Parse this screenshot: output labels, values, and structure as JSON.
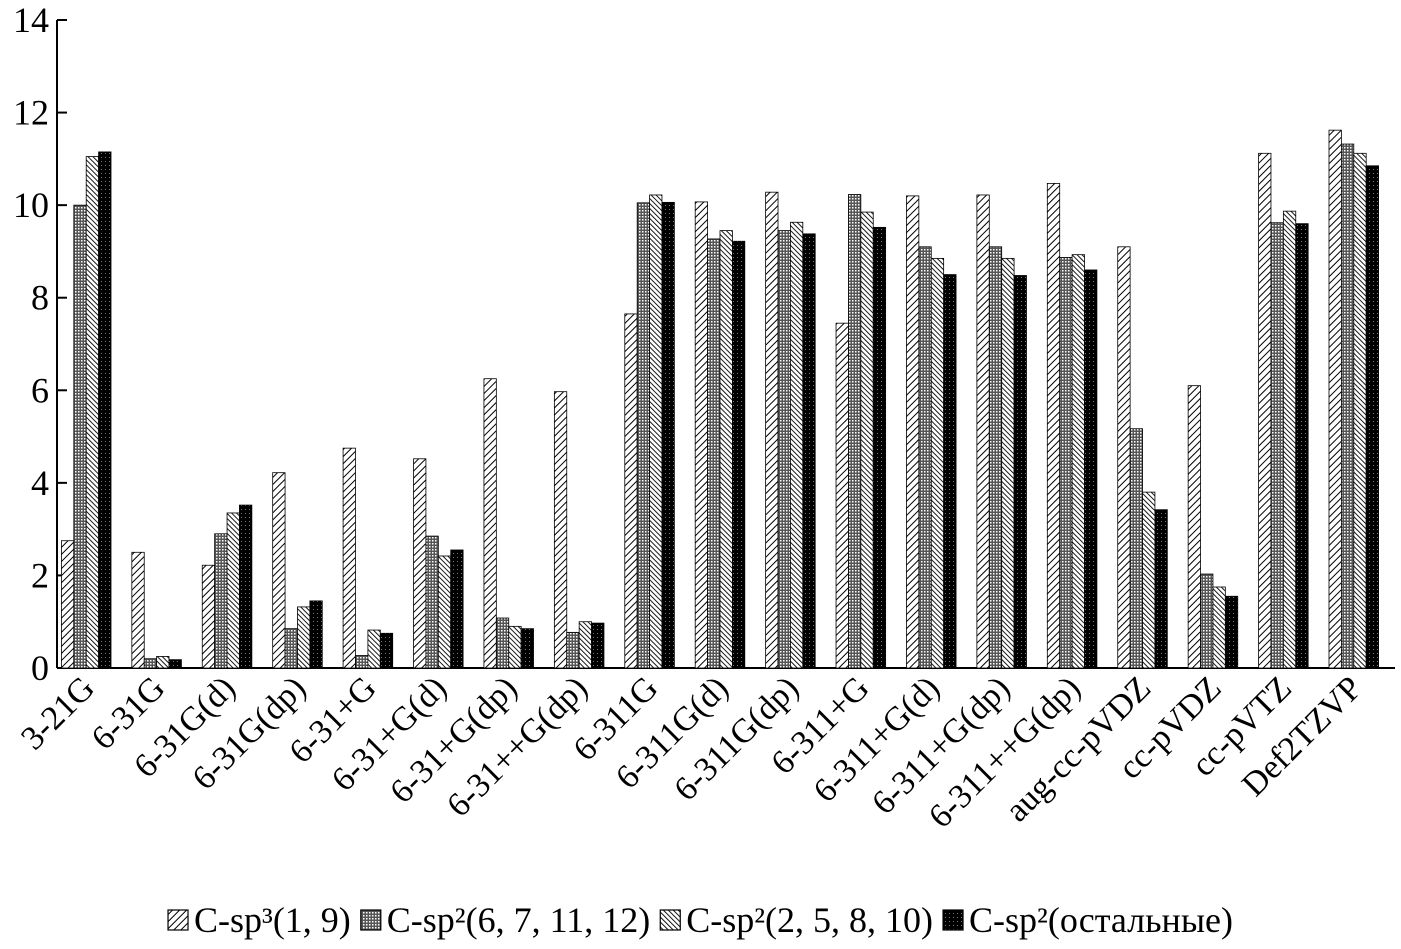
{
  "chart_data": {
    "type": "bar",
    "categories": [
      "3-21G",
      "6-31G",
      "6-31G(d)",
      "6-31G(dp)",
      "6-31+G",
      "6-31+G(d)",
      "6-31+G(dp)",
      "6-31++G(dp)",
      "6-311G",
      "6-311G(d)",
      "6-311G(dp)",
      "6-311+G",
      "6-311+G(d)",
      "6-311+G(dp)",
      "6-311++G(dp)",
      "aug-cc-pVDZ",
      "cc-pVDZ",
      "cc-pVTZ",
      "Def2TZVP"
    ],
    "series": [
      {
        "name": "C-sp³(1, 9)",
        "color": "#000000",
        "pattern": "diagonal",
        "values": [
          2.75,
          2.5,
          2.22,
          4.22,
          4.75,
          4.52,
          6.25,
          5.97,
          7.65,
          10.07,
          10.28,
          7.45,
          10.2,
          10.22,
          10.47,
          9.1,
          6.1,
          11.12,
          11.62
        ]
      },
      {
        "name": "C-sp²(6, 7, 11, 12)",
        "color": "#000000",
        "pattern": "dots",
        "values": [
          10.0,
          0.2,
          2.9,
          0.85,
          0.27,
          2.85,
          1.08,
          0.77,
          10.05,
          9.27,
          9.45,
          10.23,
          9.1,
          9.1,
          8.87,
          5.17,
          2.03,
          9.62,
          11.32
        ]
      },
      {
        "name": "C-sp²(2, 5, 8, 10)",
        "color": "#000000",
        "pattern": "diagonal-dense",
        "values": [
          11.05,
          0.25,
          3.35,
          1.32,
          0.82,
          2.42,
          0.9,
          1.0,
          10.22,
          9.45,
          9.63,
          9.85,
          8.85,
          8.85,
          8.93,
          3.8,
          1.75,
          9.87,
          11.12
        ]
      },
      {
        "name": "C-sp²(остальные)",
        "color": "#000000",
        "pattern": "solid",
        "values": [
          11.15,
          0.18,
          3.52,
          1.45,
          0.75,
          2.55,
          0.85,
          0.97,
          10.06,
          9.22,
          9.38,
          9.52,
          8.5,
          8.48,
          8.6,
          3.42,
          1.55,
          9.6,
          10.85
        ]
      }
    ],
    "ylim": [
      0,
      14
    ],
    "yticks": [
      0,
      2,
      4,
      6,
      8,
      10,
      12,
      14
    ],
    "grid": false,
    "legend": "bottom"
  }
}
